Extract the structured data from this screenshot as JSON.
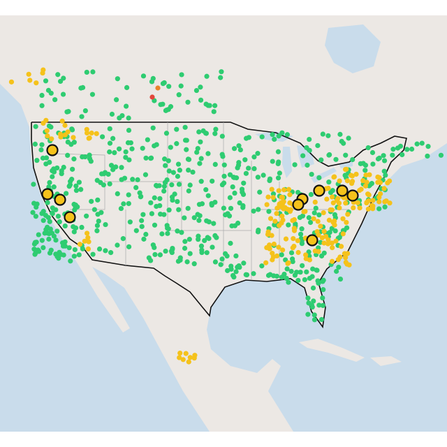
{
  "colors": [
    "#2ecc71",
    "#f5c21b",
    "#e8822c",
    "#e2473a"
  ],
  "highlight_stroke": "#111111"
}
